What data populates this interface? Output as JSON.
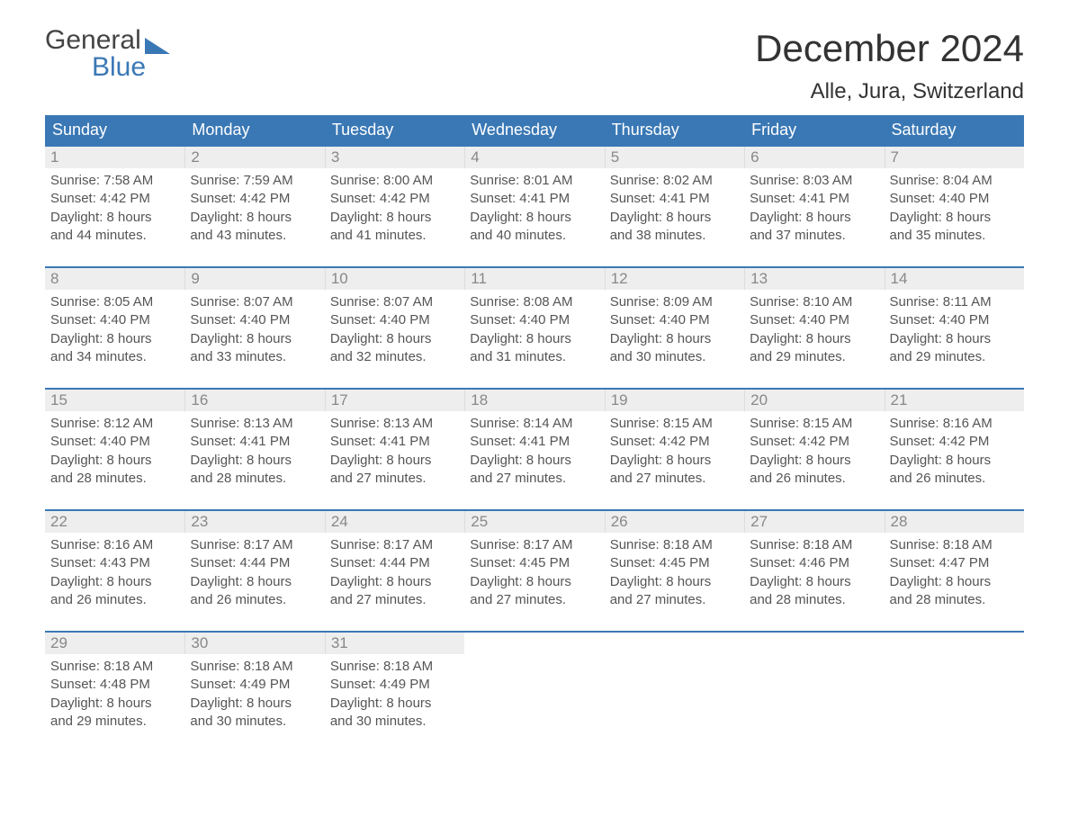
{
  "brand": {
    "line1": "General",
    "line2": "Blue"
  },
  "header": {
    "title": "December 2024",
    "location": "Alle, Jura, Switzerland"
  },
  "colors": {
    "accent": "#3a78b5",
    "header_bg": "#3a78b5",
    "day_num_bg": "#eeeeee",
    "text": "#555555"
  },
  "weekdays": [
    "Sunday",
    "Monday",
    "Tuesday",
    "Wednesday",
    "Thursday",
    "Friday",
    "Saturday"
  ],
  "weeks": [
    [
      {
        "n": "1",
        "sunrise": "Sunrise: 7:58 AM",
        "sunset": "Sunset: 4:42 PM",
        "d1": "Daylight: 8 hours",
        "d2": "and 44 minutes."
      },
      {
        "n": "2",
        "sunrise": "Sunrise: 7:59 AM",
        "sunset": "Sunset: 4:42 PM",
        "d1": "Daylight: 8 hours",
        "d2": "and 43 minutes."
      },
      {
        "n": "3",
        "sunrise": "Sunrise: 8:00 AM",
        "sunset": "Sunset: 4:42 PM",
        "d1": "Daylight: 8 hours",
        "d2": "and 41 minutes."
      },
      {
        "n": "4",
        "sunrise": "Sunrise: 8:01 AM",
        "sunset": "Sunset: 4:41 PM",
        "d1": "Daylight: 8 hours",
        "d2": "and 40 minutes."
      },
      {
        "n": "5",
        "sunrise": "Sunrise: 8:02 AM",
        "sunset": "Sunset: 4:41 PM",
        "d1": "Daylight: 8 hours",
        "d2": "and 38 minutes."
      },
      {
        "n": "6",
        "sunrise": "Sunrise: 8:03 AM",
        "sunset": "Sunset: 4:41 PM",
        "d1": "Daylight: 8 hours",
        "d2": "and 37 minutes."
      },
      {
        "n": "7",
        "sunrise": "Sunrise: 8:04 AM",
        "sunset": "Sunset: 4:40 PM",
        "d1": "Daylight: 8 hours",
        "d2": "and 35 minutes."
      }
    ],
    [
      {
        "n": "8",
        "sunrise": "Sunrise: 8:05 AM",
        "sunset": "Sunset: 4:40 PM",
        "d1": "Daylight: 8 hours",
        "d2": "and 34 minutes."
      },
      {
        "n": "9",
        "sunrise": "Sunrise: 8:07 AM",
        "sunset": "Sunset: 4:40 PM",
        "d1": "Daylight: 8 hours",
        "d2": "and 33 minutes."
      },
      {
        "n": "10",
        "sunrise": "Sunrise: 8:07 AM",
        "sunset": "Sunset: 4:40 PM",
        "d1": "Daylight: 8 hours",
        "d2": "and 32 minutes."
      },
      {
        "n": "11",
        "sunrise": "Sunrise: 8:08 AM",
        "sunset": "Sunset: 4:40 PM",
        "d1": "Daylight: 8 hours",
        "d2": "and 31 minutes."
      },
      {
        "n": "12",
        "sunrise": "Sunrise: 8:09 AM",
        "sunset": "Sunset: 4:40 PM",
        "d1": "Daylight: 8 hours",
        "d2": "and 30 minutes."
      },
      {
        "n": "13",
        "sunrise": "Sunrise: 8:10 AM",
        "sunset": "Sunset: 4:40 PM",
        "d1": "Daylight: 8 hours",
        "d2": "and 29 minutes."
      },
      {
        "n": "14",
        "sunrise": "Sunrise: 8:11 AM",
        "sunset": "Sunset: 4:40 PM",
        "d1": "Daylight: 8 hours",
        "d2": "and 29 minutes."
      }
    ],
    [
      {
        "n": "15",
        "sunrise": "Sunrise: 8:12 AM",
        "sunset": "Sunset: 4:40 PM",
        "d1": "Daylight: 8 hours",
        "d2": "and 28 minutes."
      },
      {
        "n": "16",
        "sunrise": "Sunrise: 8:13 AM",
        "sunset": "Sunset: 4:41 PM",
        "d1": "Daylight: 8 hours",
        "d2": "and 28 minutes."
      },
      {
        "n": "17",
        "sunrise": "Sunrise: 8:13 AM",
        "sunset": "Sunset: 4:41 PM",
        "d1": "Daylight: 8 hours",
        "d2": "and 27 minutes."
      },
      {
        "n": "18",
        "sunrise": "Sunrise: 8:14 AM",
        "sunset": "Sunset: 4:41 PM",
        "d1": "Daylight: 8 hours",
        "d2": "and 27 minutes."
      },
      {
        "n": "19",
        "sunrise": "Sunrise: 8:15 AM",
        "sunset": "Sunset: 4:42 PM",
        "d1": "Daylight: 8 hours",
        "d2": "and 27 minutes."
      },
      {
        "n": "20",
        "sunrise": "Sunrise: 8:15 AM",
        "sunset": "Sunset: 4:42 PM",
        "d1": "Daylight: 8 hours",
        "d2": "and 26 minutes."
      },
      {
        "n": "21",
        "sunrise": "Sunrise: 8:16 AM",
        "sunset": "Sunset: 4:42 PM",
        "d1": "Daylight: 8 hours",
        "d2": "and 26 minutes."
      }
    ],
    [
      {
        "n": "22",
        "sunrise": "Sunrise: 8:16 AM",
        "sunset": "Sunset: 4:43 PM",
        "d1": "Daylight: 8 hours",
        "d2": "and 26 minutes."
      },
      {
        "n": "23",
        "sunrise": "Sunrise: 8:17 AM",
        "sunset": "Sunset: 4:44 PM",
        "d1": "Daylight: 8 hours",
        "d2": "and 26 minutes."
      },
      {
        "n": "24",
        "sunrise": "Sunrise: 8:17 AM",
        "sunset": "Sunset: 4:44 PM",
        "d1": "Daylight: 8 hours",
        "d2": "and 27 minutes."
      },
      {
        "n": "25",
        "sunrise": "Sunrise: 8:17 AM",
        "sunset": "Sunset: 4:45 PM",
        "d1": "Daylight: 8 hours",
        "d2": "and 27 minutes."
      },
      {
        "n": "26",
        "sunrise": "Sunrise: 8:18 AM",
        "sunset": "Sunset: 4:45 PM",
        "d1": "Daylight: 8 hours",
        "d2": "and 27 minutes."
      },
      {
        "n": "27",
        "sunrise": "Sunrise: 8:18 AM",
        "sunset": "Sunset: 4:46 PM",
        "d1": "Daylight: 8 hours",
        "d2": "and 28 minutes."
      },
      {
        "n": "28",
        "sunrise": "Sunrise: 8:18 AM",
        "sunset": "Sunset: 4:47 PM",
        "d1": "Daylight: 8 hours",
        "d2": "and 28 minutes."
      }
    ],
    [
      {
        "n": "29",
        "sunrise": "Sunrise: 8:18 AM",
        "sunset": "Sunset: 4:48 PM",
        "d1": "Daylight: 8 hours",
        "d2": "and 29 minutes."
      },
      {
        "n": "30",
        "sunrise": "Sunrise: 8:18 AM",
        "sunset": "Sunset: 4:49 PM",
        "d1": "Daylight: 8 hours",
        "d2": "and 30 minutes."
      },
      {
        "n": "31",
        "sunrise": "Sunrise: 8:18 AM",
        "sunset": "Sunset: 4:49 PM",
        "d1": "Daylight: 8 hours",
        "d2": "and 30 minutes."
      },
      {
        "empty": true
      },
      {
        "empty": true
      },
      {
        "empty": true
      },
      {
        "empty": true
      }
    ]
  ]
}
